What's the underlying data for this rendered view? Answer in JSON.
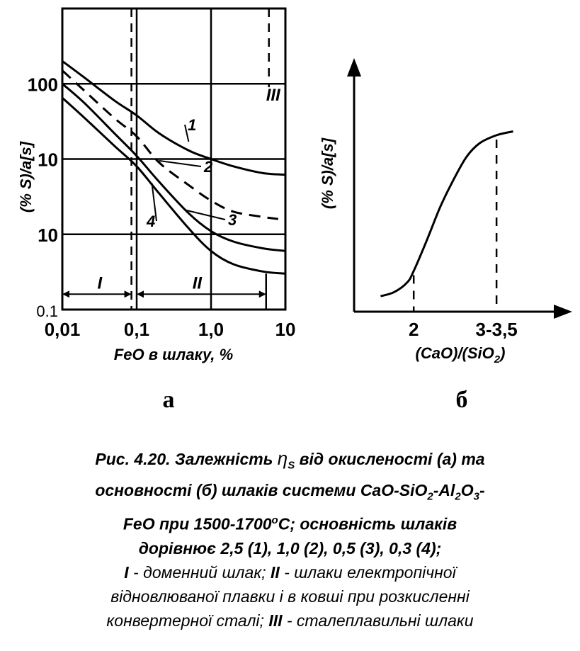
{
  "chart_data": [
    {
      "panel": "а",
      "type": "line",
      "xlabel": "FeO в шлаку, %",
      "ylabel": "(% S)/a[s]",
      "x_scale": "log",
      "y_scale": "log",
      "xlim": [
        0.01,
        10
      ],
      "ylim": [
        0.1,
        1000
      ],
      "x_ticks": [
        "0,01",
        "0,1",
        "1,0",
        "10"
      ],
      "y_ticks": [
        "100",
        "10",
        "10",
        "0.1"
      ],
      "series": [
        {
          "name": "1",
          "style": "solid",
          "x": [
            0.01,
            0.02,
            0.05,
            0.1,
            0.2,
            0.5,
            1.0,
            2.0,
            5.0,
            10
          ],
          "y": [
            200,
            120,
            60,
            38,
            22,
            13,
            10,
            8,
            6.5,
            6.2
          ]
        },
        {
          "name": "2",
          "style": "dashed",
          "x": [
            0.01,
            0.02,
            0.05,
            0.1,
            0.2,
            0.5,
            1.0,
            2.0,
            5.0,
            8
          ],
          "y": [
            150,
            80,
            35,
            20,
            9,
            4.5,
            2.8,
            2.0,
            1.7,
            1.6
          ]
        },
        {
          "name": "3",
          "style": "solid",
          "x": [
            0.01,
            0.02,
            0.05,
            0.1,
            0.2,
            0.5,
            1.0,
            2.0,
            5.0,
            10
          ],
          "y": [
            100,
            55,
            22,
            11,
            5,
            1.9,
            1.1,
            0.8,
            0.65,
            0.6
          ]
        },
        {
          "name": "4",
          "style": "solid",
          "x": [
            0.01,
            0.02,
            0.05,
            0.1,
            0.2,
            0.5,
            1.0,
            2.0,
            5.0,
            10
          ],
          "y": [
            65,
            35,
            15,
            8,
            3.5,
            1.2,
            0.6,
            0.4,
            0.32,
            0.3
          ]
        }
      ],
      "regions": [
        {
          "label": "I",
          "x_range": [
            0.01,
            0.085
          ]
        },
        {
          "label": "II",
          "x_range": [
            0.1,
            5.5
          ]
        },
        {
          "label": "III",
          "x_at": 6.0
        }
      ]
    },
    {
      "panel": "б",
      "type": "line",
      "xlabel": "(CaO)/(SiO",
      "xlabel_sub": "2",
      "xlabel_end": ")",
      "ylabel": "(% S)/a[s]",
      "x_ticks": [
        "2",
        "3-3,5"
      ],
      "x_tick_values": [
        2,
        3.25
      ],
      "xlim": [
        1.1,
        4.2
      ],
      "series": [
        {
          "name": "",
          "x": [
            1.5,
            1.7,
            1.9,
            2.0,
            2.2,
            2.4,
            2.6,
            2.8,
            3.0,
            3.25,
            3.5
          ],
          "y": [
            0.08,
            0.1,
            0.15,
            0.21,
            0.37,
            0.54,
            0.68,
            0.8,
            0.87,
            0.91,
            0.93
          ]
        }
      ]
    }
  ],
  "caption": {
    "line1_prefix": "Рис. 4.20. Залежність ",
    "eta": "η",
    "eta_sub": "S",
    "line1_suffix": " від окисленості (а) та",
    "line2_a": "основності (б) шлаків системи CaO-SiO",
    "sub2": "2",
    "line2_b": "-Al",
    "sub2b": "2",
    "line2_c": "O",
    "sub3": "3",
    "line2_d": "-",
    "line3_a": "FeO при 1500-1700",
    "deg": "o",
    "line3_b": "C; основність шлаків",
    "line4": "дорівнює 2,5 (1), 1,0 (2), 0,5 (3), 0,3 (4);",
    "line5_I": "I",
    "line5_a": " - доменний шлак; ",
    "line5_II": "II",
    "line5_b": " - шлаки електропічної",
    "line6": "відновлюваної плавки і в ковші при розкисленні",
    "line7_a": "конвертерної сталі; ",
    "line7_III": "III",
    "line7_b": " -  сталеплавильні шлаки"
  }
}
